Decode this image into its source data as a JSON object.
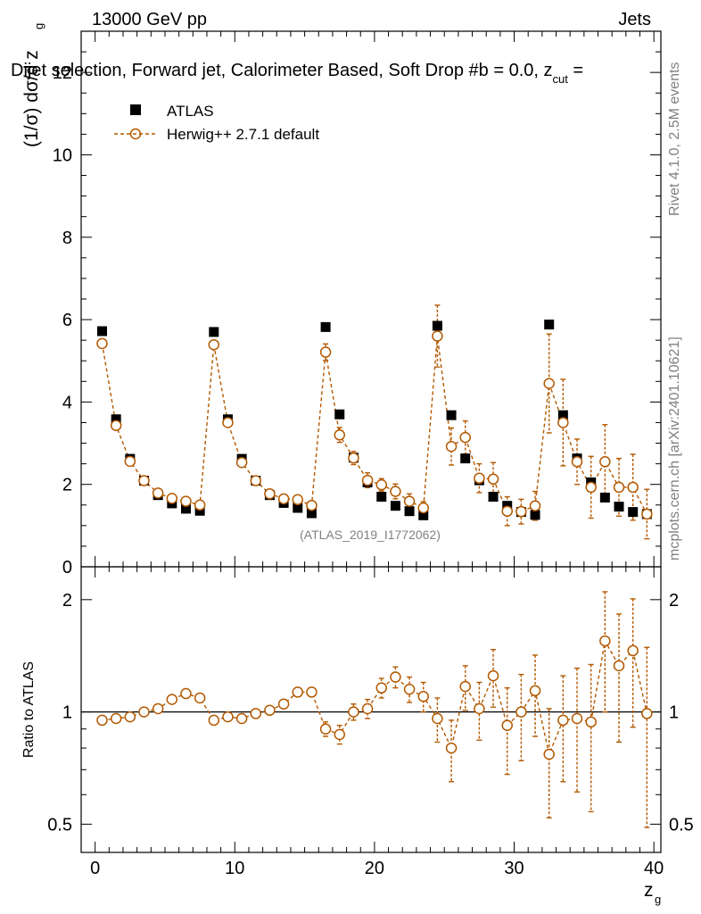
{
  "header": {
    "left": "13000 GeV pp",
    "right": "Jets",
    "title": "Dijet selection, Forward jet, Calorimeter Based, Soft Drop #b = 0.0, z",
    "title_sub": "cut",
    "title_tail": " ="
  },
  "side_labels": {
    "rivet": "Rivet 4.1.0,  2.5M events",
    "mcplots": "mcplots.cern.ch [arXiv:2401.10621]"
  },
  "watermark": "(ATLAS_2019_I1772062)",
  "colors": {
    "mc": "#b35900",
    "data": "#000000"
  },
  "chart_data": [
    {
      "type": "scatter",
      "panel": "main",
      "ylabel": "(1/σ) dσ/d z_g",
      "ylim": [
        0,
        13
      ],
      "yticks": [
        0,
        2,
        4,
        6,
        8,
        10,
        12
      ],
      "xlim": [
        -1,
        40.5
      ],
      "xticks": [
        0,
        10,
        20,
        30,
        40
      ],
      "xlabel": "z_g",
      "legend": [
        "ATLAS",
        "Herwig++ 2.7.1 default"
      ],
      "x": [
        0.5,
        1.5,
        2.5,
        3.5,
        4.5,
        5.5,
        6.5,
        7.5,
        8.5,
        9.5,
        10.5,
        11.5,
        12.5,
        13.5,
        14.5,
        15.5,
        16.5,
        17.5,
        18.5,
        19.5,
        20.5,
        21.5,
        22.5,
        23.5,
        24.5,
        25.5,
        26.5,
        27.5,
        28.5,
        29.5,
        30.5,
        31.5,
        32.5,
        33.5,
        34.5,
        35.5,
        36.5,
        37.5,
        38.5,
        39.5
      ],
      "series": [
        {
          "name": "ATLAS",
          "values": [
            5.72,
            3.58,
            2.62,
            2.09,
            1.74,
            1.54,
            1.41,
            1.36,
            5.7,
            3.58,
            2.62,
            2.09,
            1.74,
            1.55,
            1.43,
            1.3,
            5.82,
            3.7,
            2.65,
            2.05,
            1.7,
            1.48,
            1.35,
            1.25,
            5.85,
            3.68,
            2.63,
            2.1,
            1.7,
            1.48,
            1.33,
            1.26,
            5.88,
            3.68,
            2.63,
            2.05,
            1.68,
            1.46,
            1.33,
            1.28
          ],
          "errors": [
            0.05,
            0.04,
            0.03,
            0.03,
            0.03,
            0.03,
            0.03,
            0.03,
            0.05,
            0.04,
            0.03,
            0.03,
            0.03,
            0.03,
            0.03,
            0.03,
            0.05,
            0.04,
            0.04,
            0.03,
            0.03,
            0.03,
            0.03,
            0.03,
            0.08,
            0.05,
            0.04,
            0.04,
            0.04,
            0.04,
            0.04,
            0.04,
            0.1,
            0.06,
            0.05,
            0.05,
            0.05,
            0.05,
            0.05,
            0.05
          ]
        },
        {
          "name": "Herwig++ 2.7.1 default",
          "values": [
            5.42,
            3.43,
            2.56,
            2.09,
            1.79,
            1.66,
            1.59,
            1.5,
            5.39,
            3.5,
            2.53,
            2.09,
            1.77,
            1.65,
            1.63,
            1.49,
            5.21,
            3.2,
            2.64,
            2.1,
            1.99,
            1.83,
            1.59,
            1.43,
            5.6,
            2.92,
            3.14,
            2.15,
            2.13,
            1.35,
            1.34,
            1.48,
            4.45,
            3.5,
            2.55,
            1.93,
            2.55,
            1.93,
            1.93,
            1.28
          ],
          "errors": [
            0.06,
            0.07,
            0.08,
            0.08,
            0.08,
            0.08,
            0.08,
            0.08,
            0.06,
            0.07,
            0.08,
            0.08,
            0.08,
            0.08,
            0.08,
            0.1,
            0.2,
            0.18,
            0.16,
            0.18,
            0.15,
            0.18,
            0.18,
            0.15,
            0.75,
            0.45,
            0.4,
            0.35,
            0.4,
            0.35,
            0.3,
            0.35,
            1.2,
            1.05,
            0.55,
            0.75,
            0.9,
            0.7,
            0.8,
            0.6
          ]
        }
      ]
    },
    {
      "type": "scatter",
      "panel": "ratio",
      "ylabel": "Ratio to ATLAS",
      "yscale": "log",
      "ylim": [
        0.42,
        2.45
      ],
      "yticks": [
        0.5,
        1,
        2
      ],
      "ytick_labels": [
        "0.5",
        "1",
        "2"
      ],
      "xlim": [
        -1,
        40.5
      ],
      "xticks": [
        0,
        10,
        20,
        30,
        40
      ],
      "xtick_labels": [
        "0",
        "10",
        "20",
        "30",
        "40"
      ],
      "xlabel": "z_g",
      "reference": 1,
      "x": [
        0.5,
        1.5,
        2.5,
        3.5,
        4.5,
        5.5,
        6.5,
        7.5,
        8.5,
        9.5,
        10.5,
        11.5,
        12.5,
        13.5,
        14.5,
        15.5,
        16.5,
        17.5,
        18.5,
        19.5,
        20.5,
        21.5,
        22.5,
        23.5,
        24.5,
        25.5,
        26.5,
        27.5,
        28.5,
        29.5,
        30.5,
        31.5,
        32.5,
        33.5,
        34.5,
        35.5,
        36.5,
        37.5,
        38.5,
        39.5
      ],
      "values": [
        0.95,
        0.96,
        0.97,
        1.0,
        1.02,
        1.08,
        1.12,
        1.09,
        0.95,
        0.97,
        0.96,
        0.99,
        1.01,
        1.05,
        1.13,
        1.13,
        0.9,
        0.87,
        1.0,
        1.02,
        1.16,
        1.24,
        1.15,
        1.1,
        0.96,
        0.8,
        1.17,
        1.02,
        1.25,
        0.92,
        1.0,
        1.14,
        0.77,
        0.95,
        0.96,
        0.94,
        1.55,
        1.33,
        1.46,
        0.99
      ],
      "errors": [
        0.01,
        0.02,
        0.02,
        0.02,
        0.02,
        0.02,
        0.02,
        0.02,
        0.01,
        0.02,
        0.02,
        0.02,
        0.02,
        0.02,
        0.03,
        0.03,
        0.04,
        0.05,
        0.05,
        0.06,
        0.07,
        0.08,
        0.09,
        0.1,
        0.13,
        0.15,
        0.16,
        0.18,
        0.22,
        0.24,
        0.26,
        0.28,
        0.25,
        0.3,
        0.35,
        0.4,
        0.55,
        0.5,
        0.55,
        0.5
      ]
    }
  ]
}
